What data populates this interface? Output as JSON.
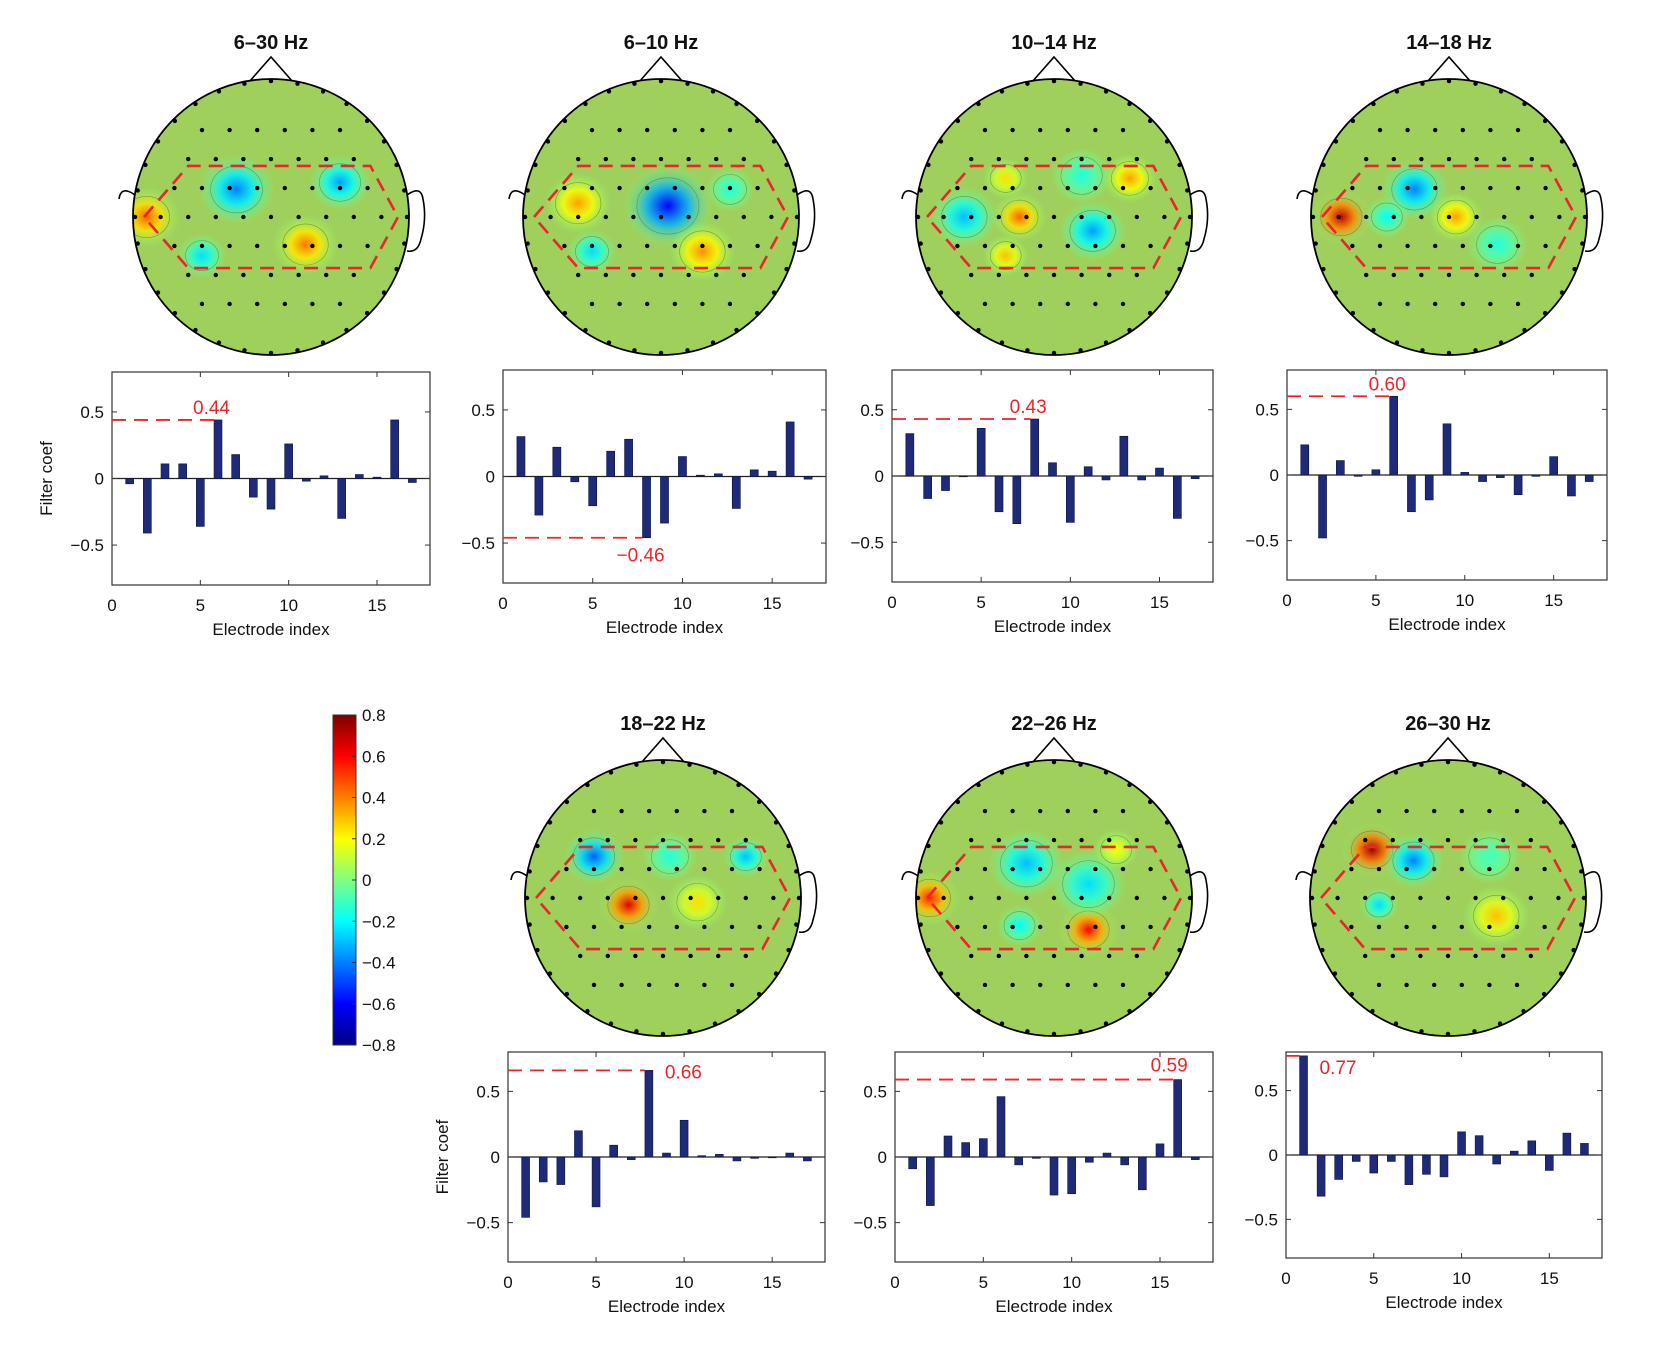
{
  "chart_data": {
    "type": "bar",
    "xlabel": "Electrode index",
    "ylabel": "Filter coef",
    "xlim": [
      0,
      18
    ],
    "ylim": [
      -0.8,
      0.8
    ],
    "xticks": [
      "0",
      "5",
      "10",
      "15"
    ],
    "yticks": [
      "-0.5",
      "0",
      "0.5"
    ],
    "grid": false,
    "bar_color": "#1f2a78",
    "annotation_color": "#e8262b",
    "x": [
      1,
      2,
      3,
      4,
      5,
      6,
      7,
      8,
      9,
      10,
      11,
      12,
      13,
      14,
      15,
      16,
      17
    ],
    "panels": [
      {
        "title": "6–30 Hz",
        "show_ylabel": true,
        "values": [
          -0.04,
          -0.41,
          0.11,
          0.11,
          -0.36,
          0.44,
          0.18,
          -0.14,
          -0.23,
          0.26,
          -0.02,
          0.02,
          -0.3,
          0.03,
          0.01,
          0.44,
          -0.03
        ],
        "annotation": {
          "index": 6,
          "value": 0.44,
          "label": "0.44",
          "placement": "above"
        }
      },
      {
        "title": "6–10 Hz",
        "show_ylabel": false,
        "values": [
          0.3,
          -0.29,
          0.22,
          -0.04,
          -0.22,
          0.19,
          0.28,
          -0.46,
          -0.35,
          0.15,
          0.01,
          0.02,
          -0.24,
          0.05,
          0.04,
          0.41,
          -0.02
        ],
        "annotation": {
          "index": 8,
          "value": -0.46,
          "label": "−0.46",
          "placement": "below"
        }
      },
      {
        "title": "10–14 Hz",
        "show_ylabel": false,
        "values": [
          0.32,
          -0.17,
          -0.11,
          0.0,
          0.36,
          -0.27,
          -0.36,
          0.43,
          0.1,
          -0.35,
          0.07,
          -0.03,
          0.3,
          -0.03,
          0.06,
          -0.32,
          -0.02
        ],
        "annotation": {
          "index": 8,
          "value": 0.43,
          "label": "0.43",
          "placement": "above"
        }
      },
      {
        "title": "14–18 Hz",
        "show_ylabel": false,
        "values": [
          0.23,
          -0.48,
          0.11,
          -0.01,
          0.04,
          0.6,
          -0.28,
          -0.19,
          0.39,
          0.02,
          -0.05,
          -0.02,
          -0.15,
          -0.01,
          0.14,
          -0.16,
          -0.05
        ],
        "annotation": {
          "index": 6,
          "value": 0.6,
          "label": "0.60",
          "placement": "above"
        }
      },
      {
        "title": "18–22 Hz",
        "show_ylabel": true,
        "values": [
          -0.46,
          -0.19,
          -0.21,
          0.2,
          -0.38,
          0.09,
          -0.02,
          0.66,
          0.03,
          0.28,
          0.01,
          0.02,
          -0.03,
          -0.01,
          0.0,
          0.03,
          -0.03
        ],
        "annotation": {
          "index": 8,
          "value": 0.66,
          "label": "0.66",
          "placement": "right"
        }
      },
      {
        "title": "22–26 Hz",
        "show_ylabel": false,
        "values": [
          -0.09,
          -0.37,
          0.16,
          0.11,
          0.14,
          0.46,
          -0.06,
          -0.01,
          -0.29,
          -0.28,
          -0.04,
          0.03,
          -0.06,
          -0.25,
          0.1,
          0.59,
          -0.02
        ],
        "annotation": {
          "index": 16,
          "value": 0.59,
          "label": "0.59",
          "placement": "above-left"
        }
      },
      {
        "title": "26–30 Hz",
        "show_ylabel": false,
        "values": [
          0.77,
          -0.32,
          -0.19,
          -0.05,
          -0.14,
          -0.05,
          -0.23,
          -0.15,
          -0.17,
          0.18,
          0.15,
          -0.07,
          0.03,
          0.11,
          -0.12,
          0.17,
          0.09
        ],
        "annotation": {
          "index": 1,
          "value": 0.77,
          "label": "0.77",
          "placement": "right"
        }
      }
    ],
    "colorbar": {
      "range": [
        -0.8,
        0.8
      ],
      "colormap": "jet",
      "ticks": [
        "0.8",
        "0.6",
        "0.4",
        "0.2",
        "0",
        "−0.2",
        "−0.4",
        "−0.6",
        "−0.8"
      ]
    }
  }
}
